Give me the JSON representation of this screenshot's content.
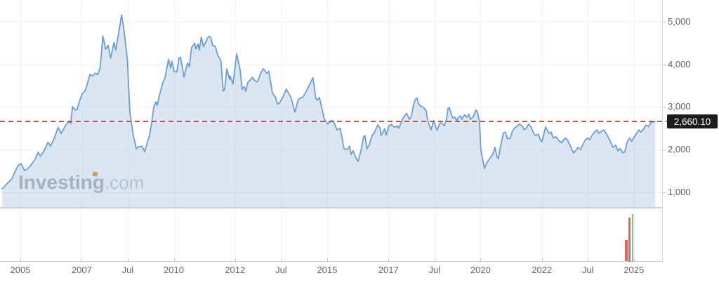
{
  "watermark": {
    "brand": "Investing",
    "suffix": ".com",
    "brand_color": "#b4b7bd",
    "suffix_color": "#c9ccd1",
    "accent_color": "#d7a63b"
  },
  "price_label": {
    "value": "2,660.10",
    "bg": "#1d1d1d",
    "text_color": "#ffffff"
  },
  "colors": {
    "line": "#6d9ecf",
    "fill": "rgba(125,165,210,0.28)",
    "dashed": "#b25450",
    "grid": "#e4e6e8",
    "axis_text": "#636363",
    "border": "#d9d9d9",
    "separator": "#ccd1d6",
    "tick": "#c9c9c9",
    "volume_up": "#7ec488",
    "volume_down": "#e0625c"
  },
  "chart_data": {
    "type": "area",
    "title": "",
    "xlabel": "",
    "ylabel": "",
    "grid": true,
    "legend": "none",
    "xlim": [
      2004.336,
      2025.92
    ],
    "ylim": [
      628,
      5518
    ],
    "y_axis": {
      "ticks": [
        1000,
        2000,
        3000,
        4000,
        5000
      ],
      "tick_labels": [
        "1,000",
        "2,000",
        "3,000",
        "4,000",
        "5,000"
      ]
    },
    "x_axis": {
      "ticks": [
        {
          "label": "2005",
          "year": 2005
        },
        {
          "label": "2007",
          "year": 2007
        },
        {
          "label": "Jul",
          "year": 2008.5
        },
        {
          "label": "2010",
          "year": 2010
        },
        {
          "label": "2012",
          "year": 2012
        },
        {
          "label": "Jul",
          "year": 2013.5
        },
        {
          "label": "2015",
          "year": 2015
        },
        {
          "label": "2017",
          "year": 2017
        },
        {
          "label": "Jul",
          "year": 2018.5
        },
        {
          "label": "2020",
          "year": 2020
        },
        {
          "label": "2022",
          "year": 2022
        },
        {
          "label": "Jul",
          "year": 2023.5
        },
        {
          "label": "2025",
          "year": 2025
        }
      ]
    },
    "dashed_line": {
      "value": 2660.1,
      "style": "dashed"
    },
    "last_value": 2660.1,
    "series": [
      {
        "name": "price",
        "points": [
          [
            2004.41,
            1070
          ],
          [
            2004.53,
            1170
          ],
          [
            2004.72,
            1310
          ],
          [
            2004.91,
            1610
          ],
          [
            2005.02,
            1670
          ],
          [
            2005.14,
            1500
          ],
          [
            2005.29,
            1580
          ],
          [
            2005.48,
            1770
          ],
          [
            2005.58,
            1940
          ],
          [
            2005.65,
            1840
          ],
          [
            2005.77,
            1970
          ],
          [
            2005.9,
            2170
          ],
          [
            2005.98,
            2080
          ],
          [
            2006.11,
            2270
          ],
          [
            2006.23,
            2520
          ],
          [
            2006.33,
            2380
          ],
          [
            2006.46,
            2550
          ],
          [
            2006.56,
            2660
          ],
          [
            2006.64,
            2610
          ],
          [
            2006.7,
            3010
          ],
          [
            2006.79,
            2930
          ],
          [
            2006.85,
            2940
          ],
          [
            2006.93,
            3150
          ],
          [
            2007.02,
            3320
          ],
          [
            2007.1,
            3370
          ],
          [
            2007.17,
            3510
          ],
          [
            2007.27,
            3770
          ],
          [
            2007.35,
            3730
          ],
          [
            2007.45,
            3800
          ],
          [
            2007.52,
            3760
          ],
          [
            2007.6,
            3920
          ],
          [
            2007.69,
            4670
          ],
          [
            2007.78,
            4360
          ],
          [
            2007.86,
            4450
          ],
          [
            2007.94,
            4150
          ],
          [
            2008.05,
            4520
          ],
          [
            2008.11,
            4340
          ],
          [
            2008.3,
            5170
          ],
          [
            2008.39,
            4750
          ],
          [
            2008.49,
            4080
          ],
          [
            2008.57,
            2880
          ],
          [
            2008.68,
            2330
          ],
          [
            2008.78,
            2020
          ],
          [
            2008.85,
            2060
          ],
          [
            2008.96,
            2080
          ],
          [
            2009.05,
            1950
          ],
          [
            2009.14,
            2170
          ],
          [
            2009.21,
            2330
          ],
          [
            2009.28,
            2630
          ],
          [
            2009.35,
            3010
          ],
          [
            2009.42,
            3120
          ],
          [
            2009.46,
            3040
          ],
          [
            2009.55,
            3320
          ],
          [
            2009.65,
            3590
          ],
          [
            2009.71,
            3670
          ],
          [
            2009.83,
            4120
          ],
          [
            2009.9,
            3920
          ],
          [
            2009.94,
            4080
          ],
          [
            2010.01,
            3840
          ],
          [
            2010.1,
            3820
          ],
          [
            2010.17,
            4150
          ],
          [
            2010.22,
            4170
          ],
          [
            2010.29,
            3900
          ],
          [
            2010.33,
            3700
          ],
          [
            2010.45,
            4040
          ],
          [
            2010.51,
            3950
          ],
          [
            2010.58,
            4400
          ],
          [
            2010.68,
            4500
          ],
          [
            2010.72,
            4370
          ],
          [
            2010.79,
            4480
          ],
          [
            2010.83,
            4340
          ],
          [
            2010.9,
            4640
          ],
          [
            2010.97,
            4420
          ],
          [
            2011.13,
            4660
          ],
          [
            2011.2,
            4650
          ],
          [
            2011.27,
            4450
          ],
          [
            2011.36,
            4420
          ],
          [
            2011.43,
            4230
          ],
          [
            2011.54,
            4080
          ],
          [
            2011.61,
            3370
          ],
          [
            2011.66,
            3420
          ],
          [
            2011.73,
            3900
          ],
          [
            2011.82,
            3650
          ],
          [
            2011.84,
            3730
          ],
          [
            2011.93,
            3540
          ],
          [
            2012.05,
            4250
          ],
          [
            2012.16,
            3900
          ],
          [
            2012.23,
            3420
          ],
          [
            2012.3,
            3480
          ],
          [
            2012.35,
            3370
          ],
          [
            2012.41,
            3570
          ],
          [
            2012.51,
            3650
          ],
          [
            2012.57,
            3700
          ],
          [
            2012.64,
            3620
          ],
          [
            2012.73,
            3590
          ],
          [
            2012.83,
            3790
          ],
          [
            2012.92,
            3900
          ],
          [
            2012.96,
            3870
          ],
          [
            2013.03,
            3790
          ],
          [
            2013.1,
            3840
          ],
          [
            2013.22,
            3320
          ],
          [
            2013.31,
            3240
          ],
          [
            2013.38,
            3070
          ],
          [
            2013.44,
            3090
          ],
          [
            2013.56,
            3240
          ],
          [
            2013.67,
            3420
          ],
          [
            2013.83,
            3210
          ],
          [
            2013.95,
            2880
          ],
          [
            2014.06,
            3180
          ],
          [
            2014.22,
            3240
          ],
          [
            2014.31,
            3360
          ],
          [
            2014.54,
            3690
          ],
          [
            2014.63,
            3210
          ],
          [
            2014.68,
            3160
          ],
          [
            2014.75,
            3220
          ],
          [
            2014.91,
            2710
          ],
          [
            2015.02,
            2600
          ],
          [
            2015.14,
            2680
          ],
          [
            2015.21,
            2660
          ],
          [
            2015.32,
            2460
          ],
          [
            2015.43,
            2500
          ],
          [
            2015.55,
            2020
          ],
          [
            2015.66,
            2000
          ],
          [
            2015.73,
            2080
          ],
          [
            2015.78,
            1880
          ],
          [
            2015.85,
            1970
          ],
          [
            2015.94,
            1800
          ],
          [
            2016.01,
            1720
          ],
          [
            2016.1,
            1970
          ],
          [
            2016.19,
            2300
          ],
          [
            2016.23,
            2330
          ],
          [
            2016.3,
            2020
          ],
          [
            2016.37,
            2100
          ],
          [
            2016.46,
            2330
          ],
          [
            2016.53,
            2380
          ],
          [
            2016.65,
            2580
          ],
          [
            2016.72,
            2510
          ],
          [
            2016.76,
            2330
          ],
          [
            2016.88,
            2490
          ],
          [
            2016.92,
            2330
          ],
          [
            2017.01,
            2550
          ],
          [
            2017.08,
            2590
          ],
          [
            2017.15,
            2550
          ],
          [
            2017.22,
            2520
          ],
          [
            2017.29,
            2560
          ],
          [
            2017.33,
            2500
          ],
          [
            2017.43,
            2660
          ],
          [
            2017.49,
            2760
          ],
          [
            2017.59,
            2850
          ],
          [
            2017.65,
            2760
          ],
          [
            2017.68,
            2710
          ],
          [
            2017.75,
            2790
          ],
          [
            2017.81,
            3040
          ],
          [
            2017.88,
            3180
          ],
          [
            2017.93,
            3210
          ],
          [
            2017.98,
            3070
          ],
          [
            2018.02,
            3040
          ],
          [
            2018.09,
            3010
          ],
          [
            2018.14,
            2990
          ],
          [
            2018.23,
            2910
          ],
          [
            2018.27,
            2710
          ],
          [
            2018.34,
            2550
          ],
          [
            2018.39,
            2460
          ],
          [
            2018.46,
            2660
          ],
          [
            2018.48,
            2680
          ],
          [
            2018.55,
            2520
          ],
          [
            2018.59,
            2450
          ],
          [
            2018.66,
            2600
          ],
          [
            2018.71,
            2630
          ],
          [
            2018.78,
            2590
          ],
          [
            2018.82,
            2560
          ],
          [
            2018.89,
            2710
          ],
          [
            2018.94,
            2960
          ],
          [
            2018.98,
            2990
          ],
          [
            2019.05,
            2820
          ],
          [
            2019.1,
            2740
          ],
          [
            2019.16,
            2760
          ],
          [
            2019.23,
            2680
          ],
          [
            2019.28,
            2760
          ],
          [
            2019.35,
            2790
          ],
          [
            2019.39,
            2710
          ],
          [
            2019.48,
            2820
          ],
          [
            2019.55,
            2760
          ],
          [
            2019.62,
            2830
          ],
          [
            2019.67,
            2710
          ],
          [
            2019.76,
            2770
          ],
          [
            2019.85,
            2930
          ],
          [
            2019.9,
            2880
          ],
          [
            2019.97,
            2630
          ],
          [
            2020.01,
            2000
          ],
          [
            2020.13,
            1550
          ],
          [
            2020.19,
            1670
          ],
          [
            2020.31,
            1800
          ],
          [
            2020.4,
            1880
          ],
          [
            2020.47,
            2050
          ],
          [
            2020.54,
            1830
          ],
          [
            2020.58,
            1790
          ],
          [
            2020.67,
            2130
          ],
          [
            2020.74,
            2380
          ],
          [
            2020.81,
            2410
          ],
          [
            2020.88,
            2250
          ],
          [
            2020.97,
            2270
          ],
          [
            2021.04,
            2430
          ],
          [
            2021.11,
            2510
          ],
          [
            2021.2,
            2550
          ],
          [
            2021.27,
            2600
          ],
          [
            2021.36,
            2550
          ],
          [
            2021.43,
            2460
          ],
          [
            2021.5,
            2510
          ],
          [
            2021.57,
            2600
          ],
          [
            2021.66,
            2510
          ],
          [
            2021.73,
            2380
          ],
          [
            2021.79,
            2330
          ],
          [
            2021.89,
            2360
          ],
          [
            2021.96,
            2210
          ],
          [
            2022.0,
            2180
          ],
          [
            2022.12,
            2530
          ],
          [
            2022.23,
            2380
          ],
          [
            2022.3,
            2410
          ],
          [
            2022.37,
            2270
          ],
          [
            2022.46,
            2300
          ],
          [
            2022.55,
            2210
          ],
          [
            2022.64,
            2160
          ],
          [
            2022.76,
            2270
          ],
          [
            2022.83,
            2230
          ],
          [
            2022.92,
            2100
          ],
          [
            2023.03,
            1920
          ],
          [
            2023.1,
            1970
          ],
          [
            2023.17,
            2050
          ],
          [
            2023.26,
            2000
          ],
          [
            2023.33,
            2100
          ],
          [
            2023.4,
            2210
          ],
          [
            2023.49,
            2270
          ],
          [
            2023.56,
            2230
          ],
          [
            2023.63,
            2330
          ],
          [
            2023.72,
            2410
          ],
          [
            2023.79,
            2460
          ],
          [
            2023.86,
            2380
          ],
          [
            2023.95,
            2430
          ],
          [
            2024.02,
            2460
          ],
          [
            2024.09,
            2380
          ],
          [
            2024.18,
            2270
          ],
          [
            2024.25,
            2160
          ],
          [
            2024.32,
            2050
          ],
          [
            2024.41,
            2100
          ],
          [
            2024.48,
            1970
          ],
          [
            2024.55,
            2020
          ],
          [
            2024.64,
            1920
          ],
          [
            2024.71,
            1950
          ],
          [
            2024.77,
            2160
          ],
          [
            2024.86,
            2270
          ],
          [
            2024.93,
            2190
          ],
          [
            2025.0,
            2280
          ],
          [
            2025.09,
            2380
          ],
          [
            2025.16,
            2460
          ],
          [
            2025.23,
            2410
          ],
          [
            2025.32,
            2490
          ],
          [
            2025.39,
            2570
          ],
          [
            2025.48,
            2540
          ],
          [
            2025.55,
            2630
          ],
          [
            2025.69,
            2660
          ]
        ]
      }
    ],
    "volume": {
      "bars": [
        {
          "year": 2024.75,
          "frac": 0.41,
          "dir": "down"
        },
        {
          "year": 2024.85,
          "frac": 0.83,
          "dir": "down"
        },
        {
          "year": 2024.96,
          "frac": 0.9,
          "dir": "up"
        }
      ]
    }
  }
}
